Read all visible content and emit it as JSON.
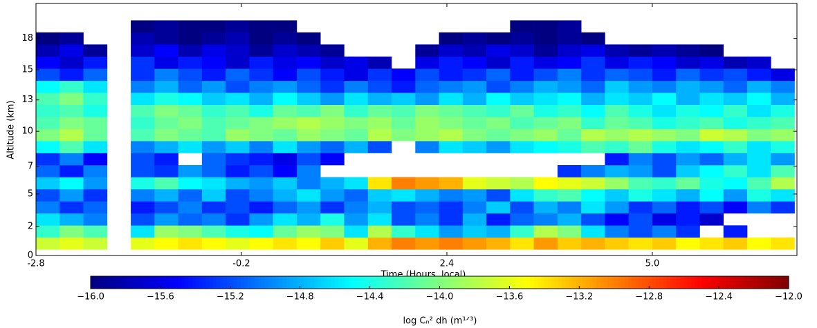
{
  "chart_data": {
    "type": "heatmap",
    "xlabel": "Time (Hours, local)",
    "ylabel": "Altitude (km)",
    "xlim": [
      -2.8,
      6.83
    ],
    "ylim": [
      0,
      20.9
    ],
    "xticks": [
      -2.8,
      -0.2,
      2.4,
      {
        "value": 5,
        "label": "5.0"
      }
    ],
    "yticks": [
      {
        "value": 0,
        "label": "0"
      },
      {
        "value": 2.4,
        "label": "2"
      },
      {
        "value": 5.1,
        "label": "5"
      },
      {
        "value": 7.4,
        "label": "7"
      },
      {
        "value": 10.3,
        "label": "10"
      },
      {
        "value": 12.9,
        "label": "13"
      },
      {
        "value": 15.4,
        "label": "15"
      },
      {
        "value": 18,
        "label": "18"
      }
    ],
    "xbins": [
      -2.8,
      -2.5,
      -2.2,
      -1.9,
      -1.6,
      -1.3,
      -1.0,
      -0.7,
      -0.4,
      -0.1,
      0.2,
      0.5,
      0.8,
      1.1,
      1.4,
      1.7,
      2.0,
      2.3,
      2.6,
      2.9,
      3.2,
      3.5,
      3.8,
      4.1,
      4.4,
      4.7,
      5.0,
      5.3,
      5.6,
      5.9,
      6.2,
      6.5,
      6.8
    ],
    "ybins": [
      0.5,
      1.5,
      2.5,
      3.5,
      4.5,
      5.5,
      6.5,
      7.5,
      8.5,
      9.5,
      10.5,
      11.5,
      12.5,
      13.5,
      14.5,
      15.5,
      16.5,
      17.5,
      18.5,
      19.5
    ],
    "z": [
      [
        -13.7,
        -13.6,
        -13.7,
        null,
        -13.6,
        -13.5,
        -13.4,
        -13.5,
        -13.6,
        -13.5,
        -13.4,
        -13.5,
        -13.3,
        -13.6,
        -13.2,
        -13.0,
        -13.1,
        -13.0,
        -13.1,
        -13.2,
        -13.4,
        -13.1,
        -13.3,
        -13.2,
        -13.3,
        -13.4,
        -13.3,
        -13.5,
        -13.4,
        -13.3,
        -13.5,
        -13.4
      ],
      [
        -14.3,
        -14.0,
        -14.2,
        null,
        -14.6,
        -13.9,
        -14.0,
        -14.2,
        -14.4,
        -14.5,
        -14.1,
        -13.9,
        -14.0,
        -14.6,
        -13.8,
        -14.3,
        -14.6,
        -14.9,
        -14.7,
        -14.8,
        -14.3,
        -13.8,
        -14.0,
        -14.6,
        -15.0,
        -15.2,
        -15.0,
        -15.3,
        null,
        -15.4,
        null,
        null
      ],
      [
        -14.6,
        -14.8,
        -15.0,
        null,
        -15.2,
        -14.9,
        -15.1,
        -15.0,
        -15.3,
        -14.9,
        -14.6,
        -14.8,
        -14.4,
        -14.9,
        -14.6,
        -15.2,
        -15.0,
        -15.3,
        -14.8,
        -15.4,
        -15.1,
        -15.0,
        -14.8,
        -15.2,
        -15.5,
        -15.2,
        -15.6,
        -15.4,
        -15.7,
        null,
        null,
        null
      ],
      [
        -15.0,
        -15.3,
        -15.1,
        null,
        -15.4,
        -15.2,
        -15.0,
        -15.3,
        -15.2,
        -15.4,
        -15.1,
        -14.9,
        -15.3,
        -15.0,
        -14.8,
        -15.2,
        -15.1,
        -15.3,
        -15.0,
        -14.7,
        -15.2,
        -14.8,
        -15.0,
        -14.6,
        -14.9,
        -15.3,
        -15.1,
        -15.4,
        -15.2,
        -15.5,
        -15.0,
        -15.3
      ],
      [
        -15.2,
        -14.9,
        -15.3,
        null,
        -15.0,
        -14.8,
        -15.1,
        -14.7,
        -15.2,
        -15.0,
        -14.8,
        -14.6,
        -14.9,
        -15.1,
        -14.7,
        -14.6,
        -14.8,
        -15.0,
        -14.9,
        -15.2,
        -14.6,
        -14.3,
        -14.2,
        -14.5,
        -14.7,
        -14.4,
        -14.6,
        -14.8,
        -14.5,
        -14.9,
        -14.4,
        -14.6
      ],
      [
        -14.7,
        -14.5,
        -14.9,
        null,
        -14.4,
        -14.2,
        -14.5,
        -14.6,
        -14.8,
        -14.9,
        -14.7,
        -15.0,
        -14.8,
        -14.6,
        -13.4,
        -13.0,
        -13.1,
        -13.2,
        -13.6,
        -13.7,
        -13.8,
        -13.5,
        -13.6,
        -13.7,
        -13.9,
        -14.2,
        -14.3,
        -14.1,
        -14.4,
        -14.5,
        -14.2,
        -13.8
      ],
      [
        -15.1,
        -15.4,
        -15.0,
        null,
        -15.2,
        -15.3,
        -14.9,
        -15.1,
        -15.4,
        -15.2,
        -15.5,
        -15.0,
        null,
        null,
        null,
        null,
        null,
        null,
        null,
        null,
        null,
        null,
        -15.3,
        -15.0,
        -14.8,
        -14.9,
        -15.2,
        -14.7,
        -14.5,
        -14.3,
        -14.6,
        -14.2
      ],
      [
        -15.3,
        -15.0,
        -15.5,
        null,
        -15.2,
        -15.4,
        null,
        -15.1,
        -15.3,
        -15.4,
        -15.6,
        -15.2,
        -15.5,
        null,
        null,
        null,
        null,
        null,
        null,
        null,
        null,
        null,
        null,
        null,
        -15.4,
        -15.0,
        -15.2,
        -14.9,
        -15.1,
        -14.8,
        -14.6,
        -14.9
      ],
      [
        -14.5,
        -14.2,
        -14.6,
        null,
        -15.0,
        -14.8,
        -14.6,
        -14.9,
        -14.7,
        -15.0,
        -14.6,
        -14.9,
        -15.1,
        -14.8,
        -15.2,
        null,
        -15.0,
        -14.6,
        -14.7,
        -14.9,
        -14.6,
        -14.5,
        -14.4,
        -14.2,
        -14.3,
        -14.1,
        -14.4,
        -14.6,
        -14.5,
        -14.3,
        -14.6,
        -14.4
      ],
      [
        -14.0,
        -13.8,
        -14.1,
        null,
        -14.2,
        -14.0,
        -14.1,
        -14.2,
        -13.9,
        -14.0,
        -14.1,
        -13.9,
        -14.0,
        -14.1,
        -13.8,
        -14.0,
        -13.9,
        -13.8,
        -14.0,
        -14.1,
        -14.0,
        -13.9,
        -14.1,
        -13.8,
        -13.9,
        -13.8,
        -13.9,
        -14.0,
        -13.7,
        -13.8,
        -14.0,
        -13.9
      ],
      [
        -14.2,
        -14.0,
        -14.1,
        null,
        -14.3,
        -14.1,
        -14.0,
        -14.2,
        -14.1,
        -14.0,
        -13.9,
        -13.8,
        -13.9,
        -14.0,
        -13.9,
        -14.1,
        -13.9,
        -14.0,
        -14.1,
        -14.0,
        -14.2,
        -14.1,
        -14.0,
        -14.3,
        -14.1,
        -14.2,
        -14.4,
        -14.3,
        -14.2,
        -14.4,
        -14.3,
        -14.2
      ],
      [
        -14.3,
        -14.2,
        -14.4,
        null,
        -14.2,
        -14.0,
        -14.1,
        -14.3,
        -14.2,
        -14.4,
        -14.1,
        -14.2,
        -14.0,
        -14.3,
        -14.1,
        -14.2,
        -14.0,
        -14.1,
        -14.2,
        -14.3,
        -14.1,
        -14.4,
        -14.3,
        -14.5,
        -14.2,
        -14.4,
        -14.6,
        -14.4,
        -14.5,
        -14.3,
        -14.6,
        -14.4
      ],
      [
        -14.2,
        -14.0,
        -14.3,
        null,
        -14.6,
        -14.4,
        -14.5,
        -14.7,
        -14.6,
        -14.8,
        -14.5,
        -14.7,
        -14.9,
        -14.6,
        -14.8,
        -14.7,
        -14.9,
        -14.6,
        -14.8,
        -14.5,
        -14.7,
        -14.6,
        -14.5,
        -14.8,
        -14.6,
        -14.7,
        -14.5,
        -14.8,
        -14.6,
        -14.7,
        -14.5,
        -14.8
      ],
      [
        -14.5,
        -14.3,
        -14.6,
        null,
        -15.0,
        -14.8,
        -15.1,
        -14.9,
        -15.2,
        -15.0,
        -14.9,
        -15.1,
        -15.3,
        -15.0,
        -15.2,
        -15.4,
        -15.1,
        -15.0,
        -14.9,
        -15.2,
        -15.0,
        -14.8,
        -14.9,
        -15.1,
        -14.7,
        -14.9,
        -15.0,
        -14.8,
        -14.9,
        -15.1,
        -14.8,
        -15.0
      ],
      [
        -15.2,
        -15.4,
        -15.1,
        null,
        -15.3,
        -15.0,
        -15.2,
        -15.4,
        -15.1,
        -15.3,
        -15.5,
        -15.2,
        -15.4,
        -15.6,
        -15.3,
        -15.5,
        -15.2,
        -15.4,
        -15.3,
        -15.1,
        -15.4,
        -15.2,
        -15.0,
        -15.3,
        -15.1,
        -15.2,
        -15.4,
        -15.1,
        -15.3,
        -15.2,
        -15.4,
        -15.6
      ],
      [
        -15.5,
        -15.7,
        -15.4,
        null,
        -15.3,
        -15.6,
        -15.4,
        -15.5,
        -15.7,
        -15.4,
        -15.6,
        -15.5,
        -15.7,
        -15.6,
        -15.8,
        null,
        -15.6,
        -15.4,
        -15.5,
        -15.7,
        -15.4,
        -15.6,
        -15.5,
        -15.3,
        -15.6,
        -15.4,
        -15.5,
        -15.7,
        -15.6,
        -15.8,
        -15.7,
        null
      ],
      [
        -15.8,
        -15.6,
        -15.9,
        null,
        -15.7,
        -15.5,
        -15.8,
        -15.6,
        -15.7,
        -15.9,
        -15.7,
        -15.8,
        -15.9,
        null,
        null,
        null,
        -15.9,
        -15.7,
        -15.8,
        -15.6,
        -15.7,
        -15.9,
        -15.7,
        -15.6,
        -15.8,
        -15.9,
        -15.8,
        -15.9,
        -16.0,
        null,
        null,
        null
      ],
      [
        -16.0,
        -15.9,
        null,
        null,
        -15.8,
        -15.9,
        -16.0,
        -15.9,
        -15.8,
        -16.0,
        -15.9,
        -16.0,
        null,
        null,
        null,
        null,
        null,
        -16.0,
        -15.9,
        -16.0,
        -15.9,
        -16.0,
        -15.9,
        -16.0,
        null,
        null,
        null,
        null,
        null,
        null,
        null,
        null
      ],
      [
        null,
        null,
        null,
        null,
        -16.0,
        -15.9,
        -16.0,
        -16.0,
        -15.9,
        -16.0,
        -16.0,
        null,
        null,
        null,
        null,
        null,
        null,
        null,
        null,
        null,
        -16.0,
        -16.0,
        -15.9,
        null,
        null,
        null,
        null,
        null,
        null,
        null,
        null,
        null
      ]
    ],
    "colormap": "jet",
    "clim": [
      -16,
      -12
    ],
    "colorbar_label": "log Cₙ² dh (m¹ᐟ³)",
    "colorbar_ticks": [
      {
        "value": -16,
        "label": "−16.0"
      },
      {
        "value": -15.6,
        "label": "−15.6"
      },
      {
        "value": -15.2,
        "label": "−15.2"
      },
      {
        "value": -14.8,
        "label": "−14.8"
      },
      {
        "value": -14.4,
        "label": "−14.4"
      },
      {
        "value": -14,
        "label": "−14.0"
      },
      {
        "value": -13.6,
        "label": "−13.6"
      },
      {
        "value": -13.2,
        "label": "−13.2"
      },
      {
        "value": -12.8,
        "label": "−12.8"
      },
      {
        "value": -12.4,
        "label": "−12.4"
      },
      {
        "value": -12,
        "label": "−12.0"
      }
    ]
  }
}
